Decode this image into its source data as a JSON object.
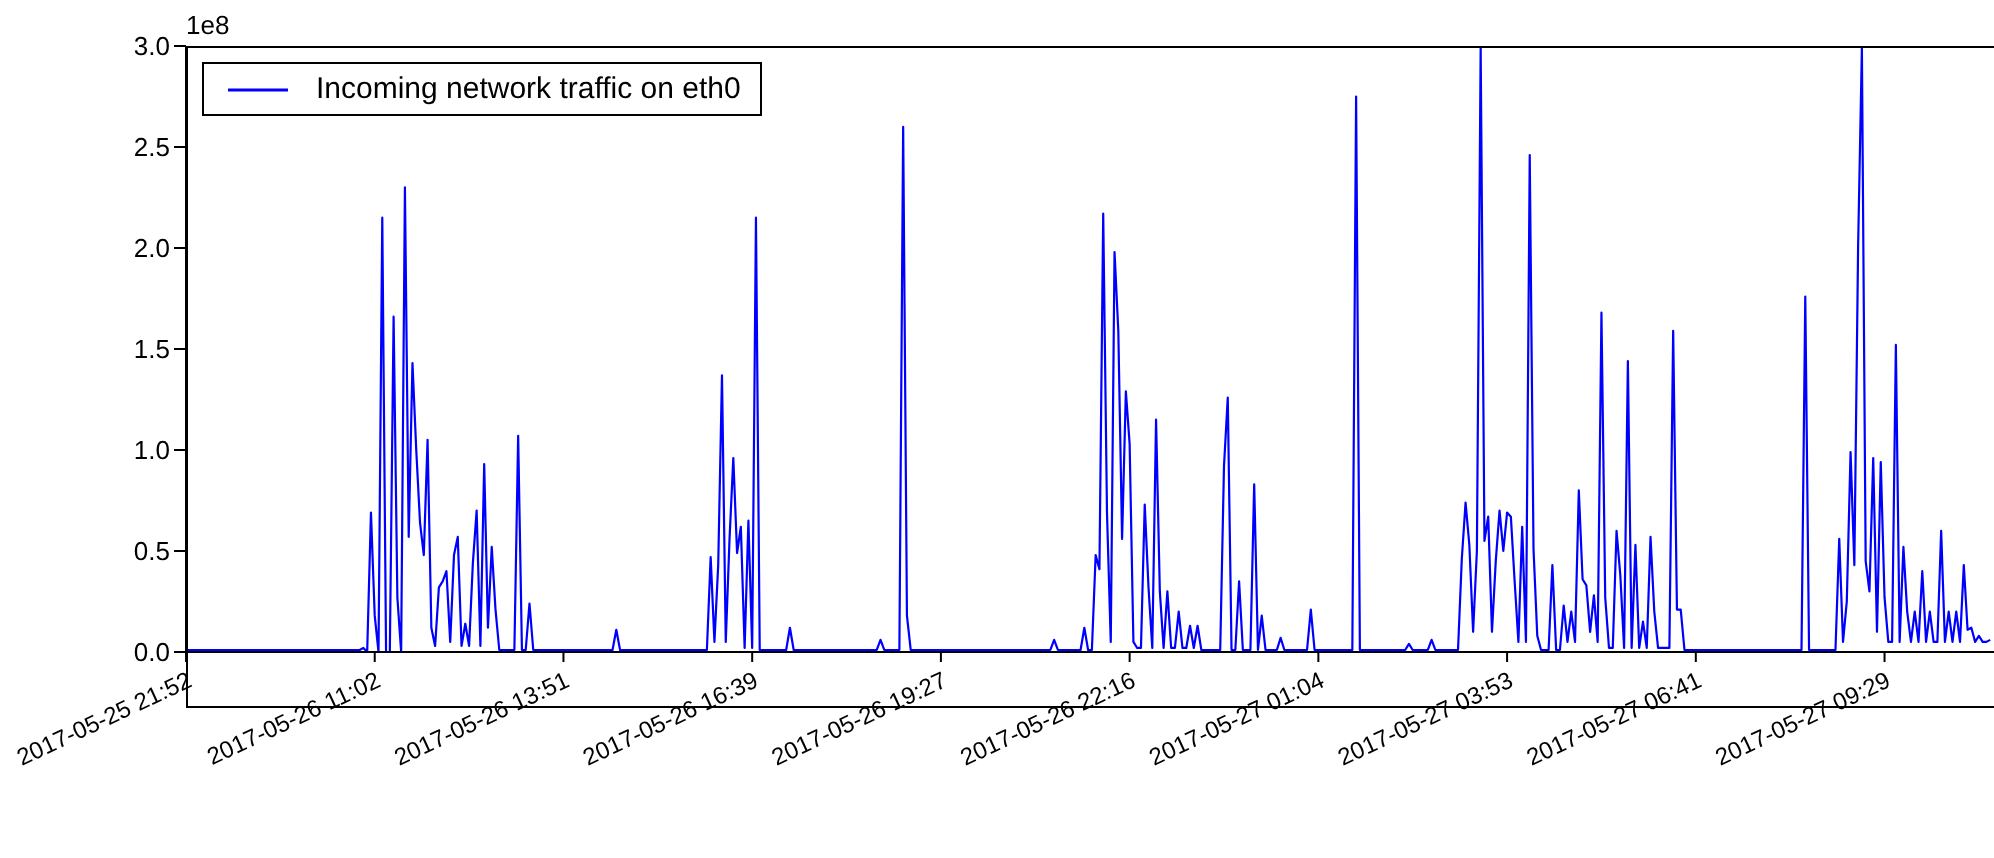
{
  "chart_data": {
    "type": "line",
    "legend": "top left",
    "annotations": [
      "1e8"
    ],
    "categories": [
      "2017-05-25 21:52",
      null,
      null,
      null,
      null,
      null,
      null,
      null,
      null,
      null,
      null,
      null,
      null,
      null,
      null,
      null,
      null,
      null,
      null,
      null,
      null,
      null,
      null,
      null,
      null,
      null,
      null,
      null,
      null,
      null,
      null,
      null,
      null,
      null,
      null,
      null,
      null,
      null,
      null,
      null,
      null,
      null,
      null,
      null,
      null,
      null,
      null,
      null,
      null,
      null,
      "2017-05-26 11:02",
      null,
      null,
      null,
      null,
      null,
      null,
      null,
      null,
      null,
      null,
      null,
      null,
      null,
      null,
      null,
      null,
      null,
      null,
      null,
      null,
      null,
      null,
      null,
      null,
      null,
      null,
      null,
      null,
      null,
      null,
      null,
      null,
      null,
      null,
      null,
      null,
      null,
      null,
      null,
      null,
      null,
      null,
      null,
      null,
      null,
      null,
      null,
      null,
      null,
      "2017-05-26 13:51",
      null,
      null,
      null,
      null,
      null,
      null,
      null,
      null,
      null,
      null,
      null,
      null,
      null,
      null,
      null,
      null,
      null,
      null,
      null,
      null,
      null,
      null,
      null,
      null,
      null,
      null,
      null,
      null,
      null,
      null,
      null,
      null,
      null,
      null,
      null,
      null,
      null,
      null,
      null,
      null,
      null,
      null,
      null,
      null,
      null,
      null,
      null,
      null,
      null,
      "2017-05-26 16:39",
      null,
      null,
      null,
      null,
      null,
      null,
      null,
      null,
      null,
      null,
      null,
      null,
      null,
      null,
      null,
      null,
      null,
      null,
      null,
      null,
      null,
      null,
      null,
      null,
      null,
      null,
      null,
      null,
      null,
      null,
      null,
      null,
      null,
      null,
      null,
      null,
      null,
      null,
      null,
      null,
      null,
      null,
      null,
      null,
      null,
      null,
      null,
      null,
      null,
      "2017-05-26 19:27",
      null,
      null,
      null,
      null,
      null,
      null,
      null,
      null,
      null,
      null,
      null,
      null,
      null,
      null,
      null,
      null,
      null,
      null,
      null,
      null,
      null,
      null,
      null,
      null,
      null,
      null,
      null,
      null,
      null,
      null,
      null,
      null,
      null,
      null,
      null,
      null,
      null,
      null,
      null,
      null,
      null,
      null,
      null,
      null,
      null,
      null,
      null,
      null,
      null,
      "2017-05-26 22:16",
      null,
      null,
      null,
      null,
      null,
      null,
      null,
      null,
      null,
      null,
      null,
      null,
      null,
      null,
      null,
      null,
      null,
      null,
      null,
      null,
      null,
      null,
      null,
      null,
      null,
      null,
      null,
      null,
      null,
      null,
      null,
      null,
      null,
      null,
      null,
      null,
      null,
      null,
      null,
      null,
      null,
      null,
      null,
      null,
      null,
      null,
      null,
      null,
      null,
      "2017-05-27 01:04",
      null,
      null,
      null,
      null,
      null,
      null,
      null,
      null,
      null,
      null,
      null,
      null,
      null,
      null,
      null,
      null,
      null,
      null,
      null,
      null,
      null,
      null,
      null,
      null,
      null,
      null,
      null,
      null,
      null,
      null,
      null,
      null,
      null,
      null,
      null,
      null,
      null,
      null,
      null,
      null,
      null,
      null,
      null,
      null,
      null,
      null,
      null,
      null,
      null,
      "2017-05-27 03:53",
      null,
      null,
      null,
      null,
      null,
      null,
      null,
      null,
      null,
      null,
      null,
      null,
      null,
      null,
      null,
      null,
      null,
      null,
      null,
      null,
      null,
      null,
      null,
      null,
      null,
      null,
      null,
      null,
      null,
      null,
      null,
      null,
      null,
      null,
      null,
      null,
      null,
      null,
      null,
      null,
      null,
      null,
      null,
      null,
      null,
      null,
      null,
      null,
      null,
      "2017-05-27 06:41",
      null,
      null,
      null,
      null,
      null,
      null,
      null,
      null,
      null,
      null,
      null,
      null,
      null,
      null,
      null,
      null,
      null,
      null,
      null,
      null,
      null,
      null,
      null,
      null,
      null,
      null,
      null,
      null,
      null,
      null,
      null,
      null,
      null,
      null,
      null,
      null,
      null,
      null,
      null,
      null,
      null,
      null,
      null,
      null,
      null,
      null,
      null,
      null,
      null,
      "2017-05-27 09:29",
      null,
      null,
      null,
      null,
      null,
      null,
      null,
      null,
      null,
      null,
      null,
      null,
      null,
      null,
      null,
      null,
      null,
      null,
      null,
      null,
      null,
      null,
      null,
      null,
      null,
      null,
      null,
      null
    ],
    "ylim": [
      0,
      3
    ],
    "yticks": [
      {
        "value": 0,
        "label": "0.0"
      },
      0.5,
      {
        "value": 1,
        "label": "1.0"
      },
      1.5,
      {
        "value": 2,
        "label": "2.0"
      },
      2.5,
      {
        "value": 3,
        "label": "3.0"
      }
    ],
    "series": [
      {
        "name": "Incoming network traffic on eth0",
        "color": "#0000ff",
        "values": [
          0.01,
          0.01,
          0.01,
          0.01,
          0.01,
          0.01,
          0.01,
          0.01,
          0.01,
          0.01,
          0.01,
          0.01,
          0.01,
          0.01,
          0.01,
          0.01,
          0.01,
          0.01,
          0.01,
          0.01,
          0.01,
          0.01,
          0.01,
          0.01,
          0.01,
          0.01,
          0.01,
          0.01,
          0.01,
          0.01,
          0.01,
          0.01,
          0.01,
          0.01,
          0.01,
          0.01,
          0.01,
          0.01,
          0.01,
          0.01,
          0.01,
          0.01,
          0.01,
          0.01,
          0.01,
          0.01,
          0.01,
          0.02,
          0,
          0.69,
          0.18,
          0,
          2.15,
          0,
          0,
          1.66,
          0.27,
          0,
          2.3,
          0.57,
          1.43,
          1.0,
          0.64,
          0.48,
          1.05,
          0.12,
          0.03,
          0.32,
          0.35,
          0.4,
          0.05,
          0.48,
          0.57,
          0.03,
          0.14,
          0.03,
          0.44,
          0.7,
          0.03,
          0.93,
          0.12,
          0.52,
          0.21,
          0.01,
          0.01,
          0.01,
          0.01,
          0.01,
          1.07,
          0.01,
          0.01,
          0.24,
          0.01,
          0.01,
          0.01,
          0.01,
          0.01,
          0.01,
          0.01,
          0.01,
          0.01,
          0.01,
          0.01,
          0.01,
          0.01,
          0.01,
          0.01,
          0.01,
          0.01,
          0.01,
          0.01,
          0.01,
          0.01,
          0.01,
          0.11,
          0.01,
          0.01,
          0.01,
          0.01,
          0.01,
          0.01,
          0.01,
          0.01,
          0.01,
          0.01,
          0.01,
          0.01,
          0.01,
          0.01,
          0.01,
          0.01,
          0.01,
          0.01,
          0.01,
          0.01,
          0.01,
          0.01,
          0.01,
          0.01,
          0.47,
          0.05,
          0.43,
          1.37,
          0.05,
          0.56,
          0.96,
          0.49,
          0.62,
          0.02,
          0.65,
          0.02,
          2.15,
          0.01,
          0.01,
          0.01,
          0.01,
          0.01,
          0.01,
          0.01,
          0.01,
          0.12,
          0.01,
          0.01,
          0.01,
          0.01,
          0.01,
          0.01,
          0.01,
          0.01,
          0.01,
          0.01,
          0.01,
          0.01,
          0.01,
          0.01,
          0.01,
          0.01,
          0.01,
          0.01,
          0.01,
          0.01,
          0.01,
          0.01,
          0.01,
          0.06,
          0.01,
          0.01,
          0.01,
          0.01,
          0.01,
          2.6,
          0.18,
          0.01,
          0.01,
          0.01,
          0.01,
          0.01,
          0.01,
          0.01,
          0.01,
          0.01,
          0.01,
          0.01,
          0.01,
          0.01,
          0.01,
          0.01,
          0.01,
          0.01,
          0.01,
          0.01,
          0.01,
          0.01,
          0.01,
          0.01,
          0.01,
          0.01,
          0.01,
          0.01,
          0.01,
          0.01,
          0.01,
          0.01,
          0.01,
          0.01,
          0.01,
          0.01,
          0.01,
          0.01,
          0.01,
          0.06,
          0.01,
          0.01,
          0.01,
          0.01,
          0.01,
          0.01,
          0.01,
          0.12,
          0.01,
          0.01,
          0.48,
          0.41,
          2.17,
          0.69,
          0.05,
          1.98,
          1.59,
          0.56,
          1.29,
          1.03,
          0.05,
          0.02,
          0.02,
          0.73,
          0.32,
          0.02,
          1.15,
          0.3,
          0.02,
          0.3,
          0.02,
          0.02,
          0.2,
          0.02,
          0.02,
          0.13,
          0.02,
          0.13,
          0.01,
          0.01,
          0.01,
          0.01,
          0.01,
          0.01,
          0.92,
          1.26,
          0.01,
          0.01,
          0.35,
          0.01,
          0.01,
          0.01,
          0.83,
          0.01,
          0.18,
          0.01,
          0.01,
          0.01,
          0.01,
          0.07,
          0.01,
          0.01,
          0.01,
          0.01,
          0.01,
          0.01,
          0.01,
          0.21,
          0.01,
          0.01,
          0.01,
          0.01,
          0.01,
          0.01,
          0.01,
          0.01,
          0.01,
          0.01,
          0.01,
          2.75,
          0.01,
          0.01,
          0.01,
          0.01,
          0.01,
          0.01,
          0.01,
          0.01,
          0.01,
          0.01,
          0.01,
          0.01,
          0.01,
          0.04,
          0.01,
          0.01,
          0.01,
          0.01,
          0.01,
          0.06,
          0.01,
          0.01,
          0.01,
          0.01,
          0.01,
          0.01,
          0.01,
          0.46,
          0.74,
          0.53,
          0.1,
          0.5,
          2.99,
          0.55,
          0.67,
          0.1,
          0.45,
          0.7,
          0.5,
          0.69,
          0.67,
          0.35,
          0.05,
          0.62,
          0.05,
          2.46,
          0.51,
          0.08,
          0.01,
          0.01,
          0.01,
          0.43,
          0.01,
          0.01,
          0.23,
          0.05,
          0.2,
          0.05,
          0.8,
          0.36,
          0.33,
          0.1,
          0.28,
          0.05,
          1.68,
          0.27,
          0.02,
          0.02,
          0.6,
          0.38,
          0.02,
          1.44,
          0.02,
          0.53,
          0.02,
          0.15,
          0.02,
          0.57,
          0.2,
          0.02,
          0.02,
          0.02,
          0.02,
          1.59,
          0.21,
          0.21,
          0.01,
          0.01,
          0.01,
          0.01,
          0.01,
          0.01,
          0.01,
          0.01,
          0.01,
          0.01,
          0.01,
          0.01,
          0.01,
          0.01,
          0.01,
          0.01,
          0.01,
          0.01,
          0.01,
          0.01,
          0.01,
          0.01,
          0.01,
          0.01,
          0.01,
          0.01,
          0.01,
          0.01,
          0.01,
          0.01,
          0.01,
          0.01,
          1.76,
          0.01,
          0.01,
          0.01,
          0.01,
          0.01,
          0.01,
          0.01,
          0.01,
          0.56,
          0.05,
          0.25,
          0.99,
          0.43,
          2.01,
          2.99,
          0.45,
          0.3,
          0.96,
          0.1,
          0.94,
          0.27,
          0.05,
          0.05,
          1.52,
          0.05,
          0.52,
          0.2,
          0.05,
          0.2,
          0.05,
          0.4,
          0.05,
          0.2,
          0.05,
          0.05,
          0.6,
          0.05,
          0.2,
          0.05,
          0.2,
          0.05,
          0.43,
          0.11,
          0.12,
          0.05,
          0.08,
          0.05,
          0.05,
          0.06
        ]
      }
    ]
  }
}
